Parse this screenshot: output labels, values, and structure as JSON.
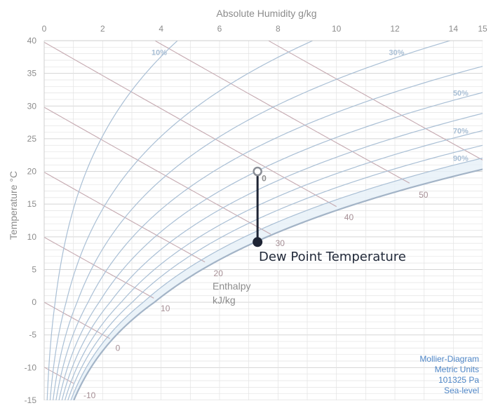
{
  "chart_data": {
    "type": "line",
    "title": "",
    "xlabel": "Absolute Humidity g/kg",
    "ylabel": "Temperature °C",
    "xlim": [
      0,
      15
    ],
    "ylim": [
      -15,
      40
    ],
    "x_ticks": [
      "0",
      "2",
      "4",
      "6",
      "8",
      "10",
      "12",
      "14",
      "15"
    ],
    "y_ticks": [
      "-15",
      "-10",
      "-5",
      "0",
      "5",
      "10",
      "15",
      "20",
      "25",
      "30",
      "35",
      "40"
    ],
    "relative_humidity_series": [
      {
        "name": "10%",
        "rh": 0.1
      },
      {
        "name": "20%",
        "rh": 0.2
      },
      {
        "name": "30%",
        "rh": 0.3
      },
      {
        "name": "40%",
        "rh": 0.4
      },
      {
        "name": "50%",
        "rh": 0.5
      },
      {
        "name": "60%",
        "rh": 0.6
      },
      {
        "name": "70%",
        "rh": 0.7
      },
      {
        "name": "80%",
        "rh": 0.8
      },
      {
        "name": "90%",
        "rh": 0.9
      },
      {
        "name": "100%",
        "rh": 1.0
      }
    ],
    "rh_labels": [
      {
        "text": "10%",
        "rh": 0.1
      },
      {
        "text": "30%",
        "rh": 0.3
      },
      {
        "text": "50%",
        "rh": 0.5
      },
      {
        "text": "70%",
        "rh": 0.7
      },
      {
        "text": "90%",
        "rh": 0.9
      }
    ],
    "enthalpy_lines_kj_per_kg": [
      -10,
      0,
      10,
      20,
      30,
      40,
      50,
      60
    ],
    "enthalpy_labels": [
      {
        "text": "-10",
        "value": -10
      },
      {
        "text": "0",
        "value": 0
      },
      {
        "text": "10",
        "value": 10
      },
      {
        "text": "20",
        "value": 20
      },
      {
        "text": "30",
        "value": 30
      },
      {
        "text": "40",
        "value": 40
      },
      {
        "text": "50",
        "value": 50
      }
    ],
    "enthalpy_title": [
      "Enthalpy",
      "kJ/kg"
    ],
    "state_point": {
      "x": 7.3,
      "y": 20,
      "label": "0"
    },
    "dew_point": {
      "x": 7.3,
      "y": 9.2
    },
    "annotation": "Dew Point Temperature",
    "info_box": [
      "Mollier-Diagram",
      "Metric Units",
      "101325 Pa",
      "Sea-level"
    ],
    "grid": true,
    "colors": {
      "rh_line": "#a9bfd5",
      "saturation_line": "#a3b4c7",
      "enthalpy_line": "#c5a9b0",
      "grid": "#e3e3e3",
      "point": "#1e2434",
      "info_text": "#4f86c6",
      "band_fill": "#e6f0f8"
    }
  }
}
